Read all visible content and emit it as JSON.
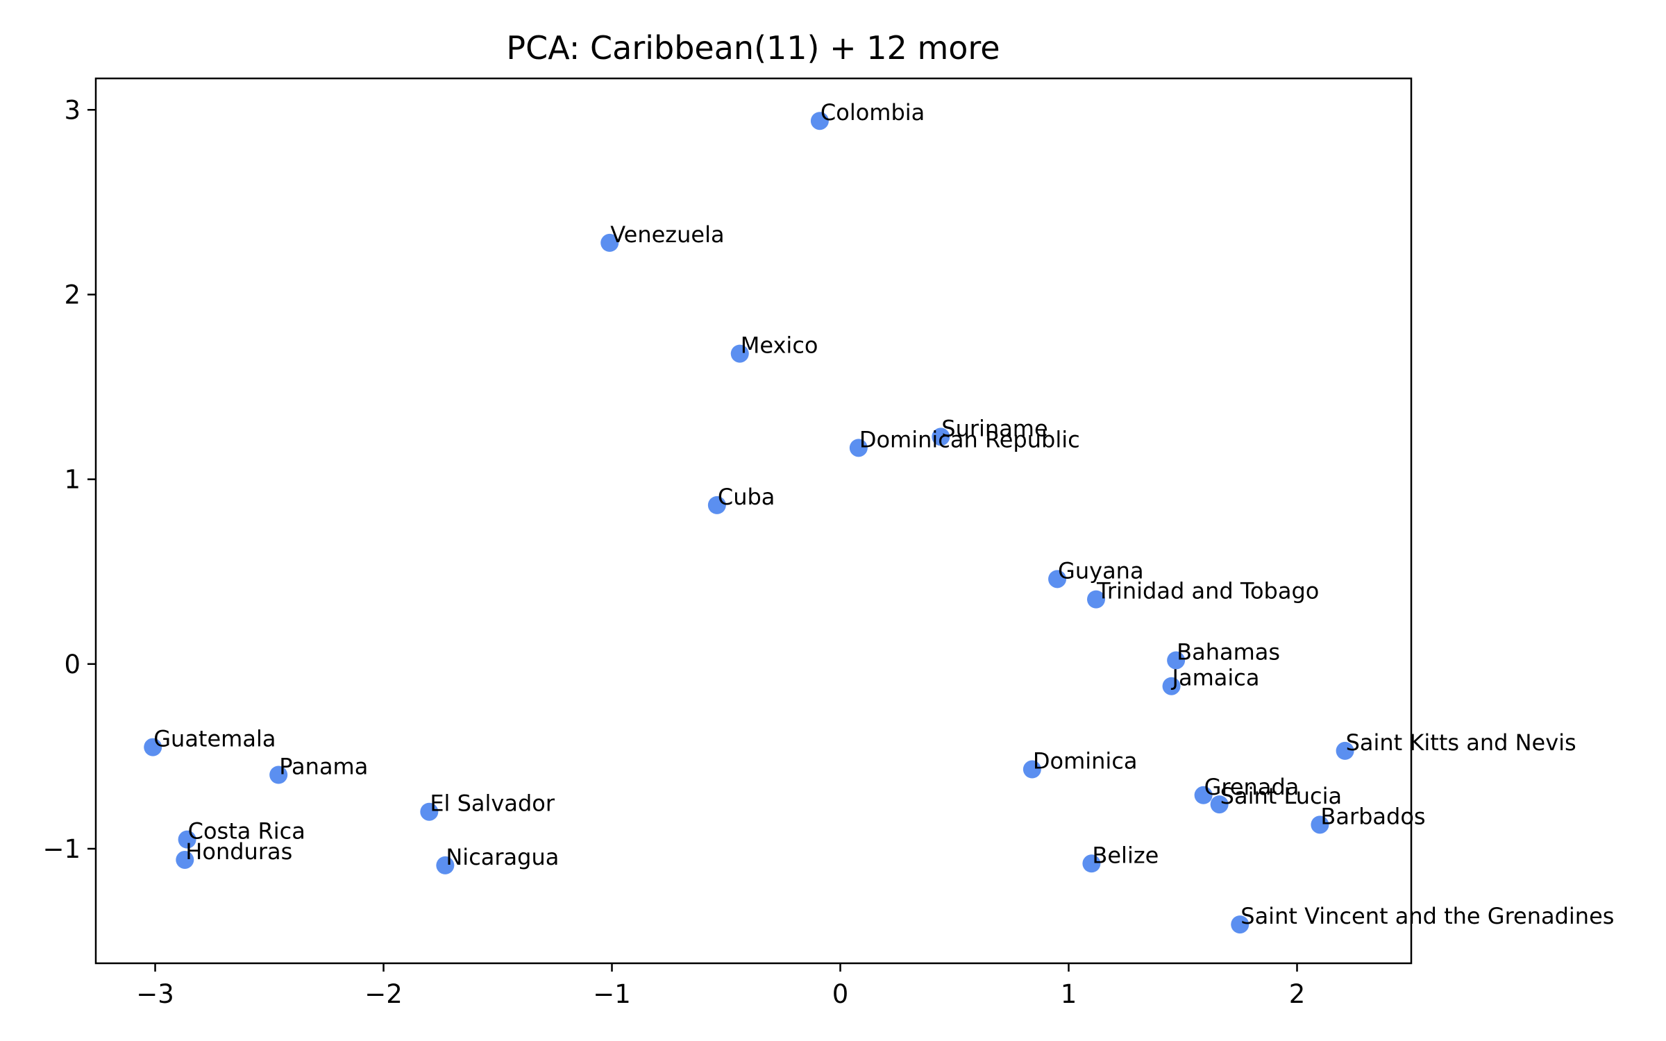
{
  "chart_data": {
    "type": "scatter",
    "title": "PCA: Caribbean(11) + 12 more",
    "xlabel": "",
    "ylabel": "",
    "xlim": [
      -3.26,
      2.5
    ],
    "ylim": [
      -1.62,
      3.17
    ],
    "xticks": [
      {
        "value": -3,
        "label": "−3"
      },
      {
        "value": -2,
        "label": "−2"
      },
      {
        "value": -1,
        "label": "−1"
      },
      {
        "value": 0,
        "label": "0"
      },
      {
        "value": 1,
        "label": "1"
      },
      {
        "value": 2,
        "label": "2"
      }
    ],
    "yticks": [
      {
        "value": -1,
        "label": "−1"
      },
      {
        "value": 0,
        "label": "0"
      },
      {
        "value": 1,
        "label": "1"
      },
      {
        "value": 2,
        "label": "2"
      },
      {
        "value": 3,
        "label": "3"
      }
    ],
    "grid": false,
    "point_color": "#5b8ff0",
    "points": [
      {
        "label": "Colombia",
        "x": -0.09,
        "y": 2.94
      },
      {
        "label": "Venezuela",
        "x": -1.01,
        "y": 2.28
      },
      {
        "label": "Mexico",
        "x": -0.44,
        "y": 1.68
      },
      {
        "label": "Suriname",
        "x": 0.44,
        "y": 1.23
      },
      {
        "label": "Dominican Republic",
        "x": 0.08,
        "y": 1.17
      },
      {
        "label": "Cuba",
        "x": -0.54,
        "y": 0.86
      },
      {
        "label": "Guyana",
        "x": 0.95,
        "y": 0.46
      },
      {
        "label": "Trinidad and Tobago",
        "x": 1.12,
        "y": 0.35
      },
      {
        "label": "Bahamas",
        "x": 1.47,
        "y": 0.02
      },
      {
        "label": "Jamaica",
        "x": 1.45,
        "y": -0.12
      },
      {
        "label": "Guatemala",
        "x": -3.01,
        "y": -0.45
      },
      {
        "label": "Saint Kitts and Nevis",
        "x": 2.21,
        "y": -0.47
      },
      {
        "label": "Panama",
        "x": -2.46,
        "y": -0.6
      },
      {
        "label": "Dominica",
        "x": 0.84,
        "y": -0.57
      },
      {
        "label": "Grenada",
        "x": 1.59,
        "y": -0.71
      },
      {
        "label": "Saint Lucia",
        "x": 1.66,
        "y": -0.76
      },
      {
        "label": "El Salvador",
        "x": -1.8,
        "y": -0.8
      },
      {
        "label": "Barbados",
        "x": 2.1,
        "y": -0.87
      },
      {
        "label": "Costa Rica",
        "x": -2.86,
        "y": -0.95
      },
      {
        "label": "Honduras",
        "x": -2.87,
        "y": -1.06
      },
      {
        "label": "Belize",
        "x": 1.1,
        "y": -1.08
      },
      {
        "label": "Nicaragua",
        "x": -1.73,
        "y": -1.09
      },
      {
        "label": "Saint Vincent and the Grenadines",
        "x": 1.75,
        "y": -1.41
      }
    ]
  }
}
